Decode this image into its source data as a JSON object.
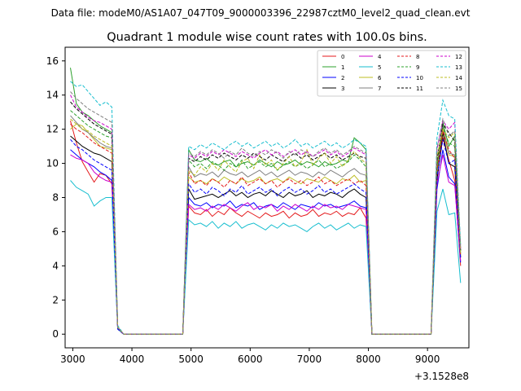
{
  "suptitle": "Data file: modeM0/AS1A07_047T09_9000003396_22987cztM0_level2_quad_clean.evt",
  "chart_data": {
    "type": "line",
    "title": "Quadrant 1 module wise count rates with 100.0s bins.",
    "xlabel": "",
    "ylabel": "",
    "x_offset_label": "+3.1528e8",
    "xlim": [
      2870,
      9700
    ],
    "ylim": [
      -0.8,
      16.8
    ],
    "xticks": [
      3000,
      4000,
      5000,
      6000,
      7000,
      8000,
      9000
    ],
    "yticks": [
      0,
      2,
      4,
      6,
      8,
      10,
      12,
      14,
      16
    ],
    "legend_position": "top-right",
    "x": [
      2960,
      3060,
      3160,
      3260,
      3360,
      3460,
      3560,
      3660,
      3760,
      3860,
      3960,
      4060,
      4160,
      4260,
      4360,
      4460,
      4560,
      4660,
      4760,
      4860,
      4960,
      5060,
      5160,
      5260,
      5360,
      5460,
      5560,
      5660,
      5760,
      5860,
      5960,
      6060,
      6160,
      6260,
      6360,
      6460,
      6560,
      6660,
      6760,
      6860,
      6960,
      7060,
      7160,
      7260,
      7360,
      7460,
      7560,
      7660,
      7760,
      7860,
      7960,
      8060,
      8160,
      8260,
      8360,
      8460,
      8560,
      8660,
      8760,
      8860,
      8960,
      9060,
      9160,
      9260,
      9360,
      9460,
      9560
    ],
    "series": [
      {
        "name": "0",
        "color": "#e41a1c",
        "dash": "solid",
        "values": [
          12.5,
          11.2,
          10.1,
          9.5,
          8.9,
          9.4,
          9.3,
          8.8,
          0.3,
          0.0,
          0.0,
          0.0,
          0.0,
          0.0,
          0.0,
          0.0,
          0.0,
          0.0,
          0.0,
          0.0,
          7.5,
          7.1,
          7.0,
          7.3,
          6.9,
          7.2,
          7.0,
          7.4,
          7.1,
          6.9,
          7.2,
          7.0,
          6.8,
          7.1,
          6.9,
          7.0,
          7.2,
          6.8,
          7.1,
          6.9,
          7.0,
          7.3,
          6.9,
          7.1,
          7.0,
          7.2,
          6.9,
          7.1,
          7.0,
          7.4,
          6.8,
          0.0,
          0.0,
          0.0,
          0.0,
          0.0,
          0.0,
          0.0,
          0.0,
          0.0,
          0.0,
          0.0,
          9.1,
          11.5,
          10.2,
          9.0,
          4.0
        ]
      },
      {
        "name": "1",
        "color": "#2ca02c",
        "dash": "solid",
        "values": [
          15.6,
          13.5,
          13.0,
          12.8,
          12.5,
          12.2,
          12.0,
          11.8,
          0.4,
          0.0,
          0.0,
          0.0,
          0.0,
          0.0,
          0.0,
          0.0,
          0.0,
          0.0,
          0.0,
          0.0,
          10.8,
          10.2,
          10.1,
          10.3,
          10.0,
          9.9,
          10.1,
          10.2,
          9.8,
          10.0,
          10.1,
          9.9,
          10.2,
          10.0,
          9.8,
          10.1,
          9.9,
          10.0,
          10.2,
          9.9,
          10.1,
          10.0,
          9.8,
          10.1,
          9.9,
          10.0,
          10.2,
          10.1,
          11.5,
          11.2,
          10.8,
          0.0,
          0.0,
          0.0,
          0.0,
          0.0,
          0.0,
          0.0,
          0.0,
          0.0,
          0.0,
          0.0,
          9.5,
          12.4,
          11.0,
          11.6,
          4.9
        ]
      },
      {
        "name": "2",
        "color": "#0000ff",
        "dash": "solid",
        "values": [
          10.8,
          10.5,
          10.2,
          10.0,
          9.8,
          9.5,
          9.3,
          9.0,
          0.3,
          0.0,
          0.0,
          0.0,
          0.0,
          0.0,
          0.0,
          0.0,
          0.0,
          0.0,
          0.0,
          0.0,
          8.0,
          7.6,
          7.5,
          7.7,
          7.4,
          7.6,
          7.5,
          7.8,
          7.4,
          7.6,
          7.5,
          7.7,
          7.3,
          7.5,
          7.6,
          7.4,
          7.7,
          7.5,
          7.3,
          7.6,
          7.5,
          7.4,
          7.7,
          7.5,
          7.6,
          7.4,
          7.5,
          7.6,
          7.8,
          7.5,
          7.4,
          0.0,
          0.0,
          0.0,
          0.0,
          0.0,
          0.0,
          0.0,
          0.0,
          0.0,
          0.0,
          0.0,
          8.5,
          10.8,
          9.2,
          8.8,
          4.2
        ]
      },
      {
        "name": "3",
        "color": "#000000",
        "dash": "solid",
        "values": [
          11.6,
          11.3,
          11.0,
          10.8,
          10.6,
          10.5,
          10.3,
          10.1,
          0.3,
          0.0,
          0.0,
          0.0,
          0.0,
          0.0,
          0.0,
          0.0,
          0.0,
          0.0,
          0.0,
          0.0,
          8.5,
          7.9,
          8.0,
          8.1,
          8.2,
          8.0,
          8.2,
          8.4,
          8.1,
          8.3,
          8.0,
          8.2,
          8.3,
          8.1,
          8.4,
          8.2,
          8.0,
          8.3,
          8.1,
          8.2,
          8.4,
          8.0,
          8.2,
          8.1,
          8.3,
          8.2,
          8.0,
          8.3,
          8.5,
          8.2,
          8.0,
          0.0,
          0.0,
          0.0,
          0.0,
          0.0,
          0.0,
          0.0,
          0.0,
          0.0,
          0.0,
          0.0,
          9.0,
          11.8,
          10.0,
          9.8,
          4.5
        ]
      },
      {
        "name": "4",
        "color": "#cc00cc",
        "dash": "solid",
        "values": [
          10.5,
          10.3,
          10.2,
          10.0,
          9.5,
          9.2,
          9.0,
          8.9,
          0.3,
          0.0,
          0.0,
          0.0,
          0.0,
          0.0,
          0.0,
          0.0,
          0.0,
          0.0,
          0.0,
          0.0,
          7.6,
          7.3,
          7.4,
          7.2,
          7.5,
          7.3,
          7.6,
          7.4,
          7.2,
          7.5,
          7.7,
          7.3,
          7.5,
          7.4,
          7.6,
          7.2,
          7.5,
          7.3,
          7.6,
          7.4,
          7.2,
          7.5,
          7.3,
          7.6,
          7.4,
          7.5,
          7.3,
          7.6,
          7.5,
          7.4,
          7.3,
          0.0,
          0.0,
          0.0,
          0.0,
          0.0,
          0.0,
          0.0,
          0.0,
          0.0,
          0.0,
          0.0,
          8.8,
          10.5,
          8.9,
          8.7,
          4.3
        ]
      },
      {
        "name": "5",
        "color": "#17becf",
        "dash": "solid",
        "values": [
          9.0,
          8.6,
          8.4,
          8.2,
          7.5,
          7.8,
          8.0,
          8.0,
          0.3,
          0.0,
          0.0,
          0.0,
          0.0,
          0.0,
          0.0,
          0.0,
          0.0,
          0.0,
          0.0,
          0.0,
          6.7,
          6.4,
          6.5,
          6.3,
          6.6,
          6.2,
          6.5,
          6.3,
          6.6,
          6.2,
          6.4,
          6.5,
          6.3,
          6.1,
          6.4,
          6.2,
          6.5,
          6.3,
          6.4,
          6.2,
          6.0,
          6.3,
          6.5,
          6.2,
          6.4,
          6.1,
          6.3,
          6.5,
          6.2,
          6.4,
          6.3,
          0.0,
          0.0,
          0.0,
          0.0,
          0.0,
          0.0,
          0.0,
          0.0,
          0.0,
          0.0,
          0.0,
          7.2,
          8.5,
          7.0,
          7.1,
          3.0
        ]
      },
      {
        "name": "6",
        "color": "#bcbd22",
        "dash": "solid",
        "values": [
          12.0,
          12.3,
          12.2,
          11.8,
          11.4,
          11.0,
          10.9,
          10.8,
          0.4,
          0.0,
          0.0,
          0.0,
          0.0,
          0.0,
          0.0,
          0.0,
          0.0,
          0.0,
          0.0,
          0.0,
          9.2,
          8.9,
          9.0,
          8.8,
          9.1,
          8.9,
          9.2,
          9.0,
          8.8,
          9.1,
          8.9,
          9.0,
          9.2,
          8.8,
          9.0,
          9.1,
          8.9,
          9.2,
          9.0,
          8.8,
          9.1,
          9.0,
          8.9,
          9.2,
          9.0,
          8.8,
          9.1,
          9.0,
          9.3,
          8.9,
          9.0,
          0.0,
          0.0,
          0.0,
          0.0,
          0.0,
          0.0,
          0.0,
          0.0,
          0.0,
          0.0,
          0.0,
          9.8,
          12.0,
          10.5,
          10.4,
          4.6
        ]
      },
      {
        "name": "7",
        "color": "#7f7f7f",
        "dash": "solid",
        "values": [
          12.8,
          12.4,
          12.0,
          11.8,
          11.5,
          11.2,
          11.0,
          10.9,
          0.4,
          0.0,
          0.0,
          0.0,
          0.0,
          0.0,
          0.0,
          0.0,
          0.0,
          0.0,
          0.0,
          0.0,
          9.8,
          9.2,
          9.4,
          9.3,
          9.5,
          9.2,
          9.6,
          9.4,
          9.3,
          9.5,
          9.2,
          9.4,
          9.6,
          9.3,
          9.5,
          9.2,
          9.4,
          9.6,
          9.3,
          9.5,
          9.4,
          9.2,
          9.5,
          9.3,
          9.6,
          9.4,
          9.2,
          9.5,
          9.7,
          9.4,
          9.3,
          0.0,
          0.0,
          0.0,
          0.0,
          0.0,
          0.0,
          0.0,
          0.0,
          0.0,
          0.0,
          0.0,
          10.0,
          12.2,
          10.6,
          10.5,
          4.7
        ]
      },
      {
        "name": "8",
        "color": "#e41a1c",
        "dash": "dashed",
        "values": [
          12.3,
          12.0,
          11.8,
          11.5,
          11.2,
          11.0,
          10.8,
          10.6,
          0.4,
          0.0,
          0.0,
          0.0,
          0.0,
          0.0,
          0.0,
          0.0,
          0.0,
          0.0,
          0.0,
          0.0,
          9.5,
          8.8,
          9.0,
          8.7,
          9.1,
          8.9,
          8.6,
          9.0,
          8.8,
          9.2,
          8.7,
          8.9,
          9.1,
          8.8,
          9.0,
          8.6,
          8.9,
          9.1,
          8.8,
          9.0,
          8.7,
          8.9,
          9.2,
          8.8,
          9.0,
          8.7,
          8.9,
          9.1,
          8.8,
          9.0,
          8.7,
          0.0,
          0.0,
          0.0,
          0.0,
          0.0,
          0.0,
          0.0,
          0.0,
          0.0,
          0.0,
          0.0,
          9.6,
          11.9,
          10.8,
          10.3,
          4.5
        ]
      },
      {
        "name": "9",
        "color": "#2ca02c",
        "dash": "dashed",
        "values": [
          13.1,
          12.8,
          12.5,
          12.2,
          12.0,
          11.8,
          11.6,
          11.5,
          0.4,
          0.0,
          0.0,
          0.0,
          0.0,
          0.0,
          0.0,
          0.0,
          0.0,
          0.0,
          0.0,
          0.0,
          10.2,
          9.8,
          10.0,
          9.7,
          10.1,
          9.9,
          9.6,
          10.0,
          9.8,
          10.2,
          9.7,
          9.9,
          10.1,
          9.8,
          10.0,
          9.6,
          9.9,
          10.1,
          9.8,
          10.0,
          9.7,
          9.9,
          10.2,
          9.8,
          10.0,
          9.7,
          9.9,
          10.1,
          10.5,
          10.2,
          9.8,
          0.0,
          0.0,
          0.0,
          0.0,
          0.0,
          0.0,
          0.0,
          0.0,
          0.0,
          0.0,
          0.0,
          9.9,
          12.1,
          11.2,
          11.0,
          4.8
        ]
      },
      {
        "name": "10",
        "color": "#0000ff",
        "dash": "dashed",
        "values": [
          11.4,
          11.0,
          10.8,
          10.5,
          10.2,
          10.0,
          9.8,
          9.6,
          0.3,
          0.0,
          0.0,
          0.0,
          0.0,
          0.0,
          0.0,
          0.0,
          0.0,
          0.0,
          0.0,
          0.0,
          8.8,
          8.3,
          8.5,
          8.2,
          8.6,
          8.4,
          8.1,
          8.5,
          8.3,
          8.7,
          8.2,
          8.4,
          8.6,
          8.3,
          8.5,
          8.1,
          8.4,
          8.6,
          8.3,
          8.5,
          8.2,
          8.4,
          8.7,
          8.3,
          8.5,
          8.2,
          8.4,
          8.6,
          8.8,
          8.5,
          8.3,
          0.0,
          0.0,
          0.0,
          0.0,
          0.0,
          0.0,
          0.0,
          0.0,
          0.0,
          0.0,
          0.0,
          9.2,
          11.4,
          10.0,
          10.2,
          4.4
        ]
      },
      {
        "name": "11",
        "color": "#000000",
        "dash": "dashed",
        "values": [
          13.6,
          13.2,
          12.9,
          12.6,
          12.3,
          12.1,
          11.9,
          11.7,
          0.4,
          0.0,
          0.0,
          0.0,
          0.0,
          0.0,
          0.0,
          0.0,
          0.0,
          0.0,
          0.0,
          0.0,
          10.3,
          10.1,
          10.4,
          10.2,
          10.5,
          10.3,
          10.6,
          10.4,
          10.2,
          10.5,
          10.3,
          10.6,
          10.4,
          10.2,
          10.5,
          10.3,
          10.1,
          10.4,
          10.6,
          10.3,
          10.5,
          10.2,
          10.4,
          10.6,
          10.3,
          10.5,
          10.2,
          10.4,
          10.6,
          10.4,
          10.3,
          0.0,
          0.0,
          0.0,
          0.0,
          0.0,
          0.0,
          0.0,
          0.0,
          0.0,
          0.0,
          0.0,
          10.2,
          12.3,
          11.8,
          11.3,
          4.9
        ]
      },
      {
        "name": "12",
        "color": "#cc00cc",
        "dash": "dashed",
        "values": [
          14.0,
          13.3,
          13.0,
          12.7,
          12.5,
          12.4,
          12.2,
          12.0,
          0.4,
          0.0,
          0.0,
          0.0,
          0.0,
          0.0,
          0.0,
          0.0,
          0.0,
          0.0,
          0.0,
          0.0,
          10.5,
          10.3,
          10.6,
          10.4,
          10.7,
          10.5,
          10.8,
          10.6,
          10.4,
          10.7,
          10.5,
          10.3,
          10.6,
          10.8,
          10.5,
          10.7,
          10.4,
          10.6,
          10.8,
          10.5,
          10.7,
          10.4,
          10.6,
          10.8,
          10.5,
          10.7,
          10.4,
          10.6,
          10.9,
          10.7,
          10.5,
          0.0,
          0.0,
          0.0,
          0.0,
          0.0,
          0.0,
          0.0,
          0.0,
          0.0,
          0.0,
          0.0,
          10.8,
          12.5,
          12.0,
          12.4,
          5.0
        ]
      },
      {
        "name": "13",
        "color": "#17becf",
        "dash": "dashed",
        "values": [
          14.8,
          14.5,
          14.6,
          14.2,
          13.8,
          13.4,
          13.6,
          13.3,
          0.5,
          0.0,
          0.0,
          0.0,
          0.0,
          0.0,
          0.0,
          0.0,
          0.0,
          0.0,
          0.0,
          0.0,
          11.0,
          10.8,
          11.1,
          10.9,
          11.2,
          11.0,
          10.8,
          11.1,
          11.3,
          11.0,
          11.2,
          10.9,
          11.1,
          11.3,
          11.0,
          11.2,
          10.9,
          11.1,
          11.4,
          11.0,
          11.2,
          10.9,
          11.1,
          11.3,
          11.0,
          11.2,
          10.9,
          11.1,
          11.4,
          11.2,
          11.0,
          0.0,
          0.0,
          0.0,
          0.0,
          0.0,
          0.0,
          0.0,
          0.0,
          0.0,
          0.0,
          0.0,
          11.5,
          13.7,
          12.8,
          12.6,
          5.2
        ]
      },
      {
        "name": "14",
        "color": "#bcbd22",
        "dash": "dashed",
        "values": [
          12.6,
          12.3,
          12.0,
          11.9,
          11.6,
          11.4,
          11.2,
          11.0,
          0.4,
          0.0,
          0.0,
          0.0,
          0.0,
          0.0,
          0.0,
          0.0,
          0.0,
          0.0,
          0.0,
          0.0,
          9.6,
          9.3,
          9.8,
          9.5,
          10.0,
          9.6,
          10.2,
          9.8,
          9.5,
          10.1,
          10.3,
          9.7,
          10.5,
          9.9,
          10.2,
          9.6,
          10.0,
          10.4,
          9.8,
          10.1,
          10.8,
          9.9,
          10.3,
          10.6,
          10.0,
          10.4,
          9.8,
          10.2,
          10.7,
          10.3,
          10.0,
          0.0,
          0.0,
          0.0,
          0.0,
          0.0,
          0.0,
          0.0,
          0.0,
          0.0,
          0.0,
          0.0,
          10.4,
          12.0,
          11.5,
          11.8,
          4.7
        ]
      },
      {
        "name": "15",
        "color": "#7f7f7f",
        "dash": "dashed",
        "values": [
          14.2,
          13.8,
          13.5,
          13.2,
          13.0,
          12.8,
          12.6,
          12.4,
          0.4,
          0.0,
          0.0,
          0.0,
          0.0,
          0.0,
          0.0,
          0.0,
          0.0,
          0.0,
          0.0,
          0.0,
          10.6,
          10.4,
          10.7,
          10.5,
          10.8,
          10.6,
          10.3,
          10.7,
          10.5,
          10.9,
          10.6,
          10.4,
          10.7,
          10.5,
          10.8,
          10.6,
          10.3,
          10.7,
          10.5,
          10.8,
          10.6,
          10.4,
          10.7,
          10.9,
          10.6,
          10.8,
          10.5,
          10.7,
          11.0,
          10.8,
          10.6,
          0.0,
          0.0,
          0.0,
          0.0,
          0.0,
          0.0,
          0.0,
          0.0,
          0.0,
          0.0,
          0.0,
          10.9,
          12.6,
          11.6,
          11.9,
          5.1
        ]
      }
    ]
  }
}
